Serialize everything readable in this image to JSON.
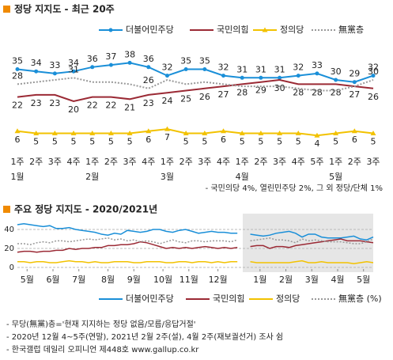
{
  "chart_data": [
    {
      "type": "line",
      "title": "정당 지지도 - 최근 20주",
      "categories": [
        "1주",
        "2주",
        "3주",
        "4주",
        "1주",
        "2주",
        "3주",
        "4주",
        "1주",
        "2주",
        "3주",
        "4주",
        "1주",
        "2주",
        "3주",
        "4주",
        "5주",
        "1주",
        "2주",
        "3주"
      ],
      "month_groups": [
        {
          "label": "1월",
          "weeks": 4
        },
        {
          "label": "2월",
          "weeks": 4
        },
        {
          "label": "3월",
          "weeks": 4
        },
        {
          "label": "4월",
          "weeks": 5
        },
        {
          "label": "5월",
          "weeks": 3
        }
      ],
      "ylim": [
        0,
        40
      ],
      "series": [
        {
          "name": "더불어민주당",
          "color": "#1a8fd8",
          "marker": "circle",
          "label_pos": "above",
          "values": [
            35,
            34,
            33,
            34,
            36,
            37,
            38,
            36,
            32,
            35,
            35,
            32,
            31,
            31,
            31,
            32,
            33,
            30,
            29,
            32
          ]
        },
        {
          "name": "국민의힘",
          "color": "#9b2a35",
          "marker": "none",
          "label_pos": "below",
          "values": [
            22,
            23,
            23,
            20,
            22,
            22,
            21,
            23,
            24,
            25,
            26,
            27,
            28,
            29,
            30,
            28,
            28,
            28,
            27,
            26
          ]
        },
        {
          "name": "정의당",
          "color": "#f2c200",
          "marker": "triangle",
          "label_pos": "below",
          "values": [
            6,
            5,
            5,
            5,
            5,
            5,
            5,
            6,
            7,
            5,
            5,
            6,
            5,
            5,
            5,
            5,
            4,
            5,
            6,
            5
          ]
        },
        {
          "name": "無黨층",
          "color": "#999999",
          "marker": "none",
          "dashed": true,
          "label_pos": "above",
          "label_indices": [
            0,
            3,
            7,
            19
          ],
          "values": [
            28,
            29,
            30,
            31,
            29,
            29,
            28,
            26,
            30,
            28,
            29,
            28,
            27,
            27,
            27,
            26,
            25,
            25,
            27,
            30
          ]
        }
      ],
      "note": "- 국민의당 4%, 열린민주당 2%, 그 외 정당/단체 1%"
    },
    {
      "type": "line",
      "title": "주요 정당 지지도 - 2020/2021년",
      "xlim": [
        0,
        55
      ],
      "xticks": [
        {
          "value": 1.5,
          "label": "5월"
        },
        {
          "value": 5.5,
          "label": "6월"
        },
        {
          "value": 9.5,
          "label": "7월"
        },
        {
          "value": 14,
          "label": "8월"
        },
        {
          "value": 18,
          "label": "9월"
        },
        {
          "value": 22.5,
          "label": "10월"
        },
        {
          "value": 26.5,
          "label": "11월"
        },
        {
          "value": 31,
          "label": "12월"
        },
        {
          "value": 37.5,
          "label": "1월"
        },
        {
          "value": 41.5,
          "label": "2월"
        },
        {
          "value": 45.5,
          "label": "3월"
        },
        {
          "value": 49.5,
          "label": "4월"
        },
        {
          "value": 53.5,
          "label": "5월"
        }
      ],
      "ylim": [
        0,
        50
      ],
      "yticks": [
        0,
        20,
        40
      ],
      "grid": true,
      "series": [
        {
          "name": "더불어민주당",
          "color": "#1a8fd8",
          "values": [
            45,
            46,
            45,
            44,
            43,
            44,
            41,
            41,
            42,
            40,
            39,
            38,
            37,
            35,
            34,
            36,
            35,
            39,
            38,
            37,
            38,
            40,
            40,
            38,
            37,
            39,
            40,
            38,
            36,
            37,
            38,
            37,
            37,
            36,
            36,
            null,
            35,
            34,
            33,
            34,
            36,
            37,
            38,
            36,
            32,
            35,
            35,
            32,
            31,
            31,
            31,
            32,
            33,
            30,
            29,
            32
          ]
        },
        {
          "name": "국민의힘",
          "color": "#9b2a35",
          "values": [
            16,
            17,
            17,
            16,
            17,
            17,
            18,
            18,
            20,
            19,
            20,
            20,
            21,
            21,
            23,
            23,
            24,
            24,
            25,
            27,
            26,
            24,
            22,
            20,
            21,
            20,
            21,
            20,
            21,
            22,
            21,
            20,
            21,
            20,
            21,
            null,
            22,
            23,
            23,
            20,
            22,
            22,
            21,
            23,
            24,
            25,
            26,
            27,
            28,
            29,
            30,
            28,
            28,
            28,
            27,
            26
          ]
        },
        {
          "name": "정의당",
          "color": "#f2c200",
          "values": [
            6,
            6,
            5,
            6,
            6,
            5,
            5,
            6,
            7,
            6,
            6,
            5,
            6,
            5,
            5,
            6,
            6,
            6,
            5,
            5,
            6,
            6,
            6,
            5,
            5,
            6,
            6,
            5,
            6,
            6,
            5,
            6,
            5,
            6,
            6,
            null,
            6,
            5,
            5,
            5,
            5,
            5,
            5,
            6,
            7,
            5,
            5,
            6,
            5,
            5,
            5,
            5,
            4,
            5,
            6,
            5
          ]
        },
        {
          "name": "無黨층 (%)",
          "color": "#999999",
          "dashed": true,
          "values": [
            25,
            25,
            24,
            26,
            27,
            26,
            28,
            28,
            27,
            28,
            29,
            30,
            29,
            30,
            31,
            29,
            30,
            28,
            29,
            27,
            28,
            27,
            25,
            27,
            29,
            27,
            26,
            28,
            28,
            27,
            28,
            28,
            28,
            27,
            29,
            null,
            28,
            29,
            30,
            31,
            29,
            29,
            28,
            26,
            30,
            28,
            29,
            28,
            27,
            27,
            27,
            26,
            25,
            25,
            27,
            30
          ]
        }
      ],
      "notes": [
        "- 무당(無黨)층='현재 지지하는 정당 없음/모름/응답거절'",
        "- 2020년 12월 4~5주(연말), 2021년 2월 2주(설), 4월 2주(재보궐선거) 조사 쉼",
        "- 한국갤럽 데일리 오피니언 제448호 www.gallup.co.kr"
      ]
    }
  ]
}
